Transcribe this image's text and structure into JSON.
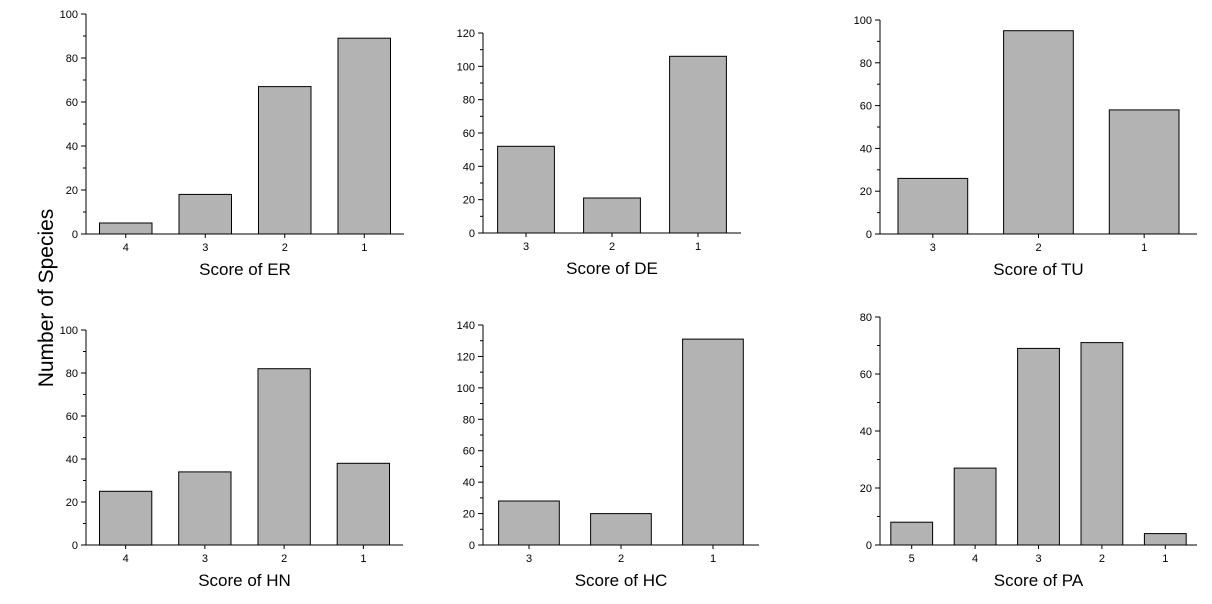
{
  "figure": {
    "ylabel": "Number of Species",
    "colors": {
      "bar_fill": "#b3b3b3",
      "bar_stroke": "#000000",
      "axis": "#000000"
    }
  },
  "chart_data": [
    {
      "type": "bar",
      "xlabel": "Score of ER",
      "categories": [
        "4",
        "3",
        "2",
        "1"
      ],
      "values": [
        5,
        18,
        67,
        89
      ],
      "ylim": [
        0,
        100
      ],
      "yticks": [
        0,
        20,
        40,
        60,
        80,
        100
      ]
    },
    {
      "type": "bar",
      "xlabel": "Score of DE",
      "categories": [
        "3",
        "2",
        "1"
      ],
      "values": [
        52,
        21,
        106
      ],
      "ylim": [
        0,
        120
      ],
      "yticks": [
        0,
        20,
        40,
        60,
        80,
        100,
        120
      ]
    },
    {
      "type": "bar",
      "xlabel": "Score of TU",
      "categories": [
        "3",
        "2",
        "1"
      ],
      "values": [
        26,
        95,
        58
      ],
      "ylim": [
        0,
        100
      ],
      "yticks": [
        0,
        20,
        40,
        60,
        80,
        100
      ]
    },
    {
      "type": "bar",
      "xlabel": "Score of HN",
      "categories": [
        "4",
        "3",
        "2",
        "1"
      ],
      "values": [
        25,
        34,
        82,
        38
      ],
      "ylim": [
        0,
        100
      ],
      "yticks": [
        0,
        20,
        40,
        60,
        80,
        100
      ]
    },
    {
      "type": "bar",
      "xlabel": "Score of HC",
      "categories": [
        "3",
        "2",
        "1"
      ],
      "values": [
        28,
        20,
        131
      ],
      "ylim": [
        0,
        140
      ],
      "yticks": [
        0,
        20,
        40,
        60,
        80,
        100,
        120,
        140
      ]
    },
    {
      "type": "bar",
      "xlabel": "Score of PA",
      "categories": [
        "5",
        "4",
        "3",
        "2",
        "1"
      ],
      "values": [
        8,
        27,
        69,
        71,
        4
      ],
      "ylim": [
        0,
        80
      ],
      "yticks": [
        0,
        20,
        40,
        60,
        80
      ]
    }
  ]
}
